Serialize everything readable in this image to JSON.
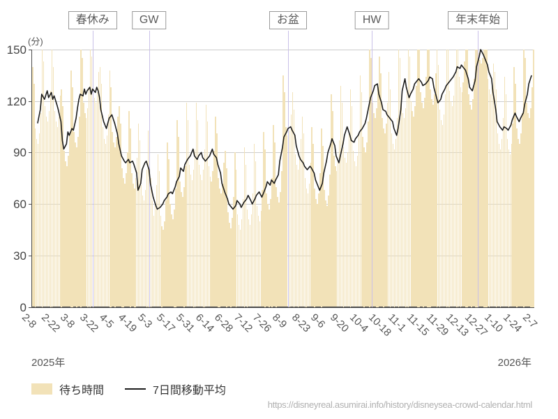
{
  "colors": {
    "bar": "#f2e2b8",
    "line": "#1c1c1c",
    "grid": "#cccccc",
    "axis": "#4a4a4a",
    "event_line": "#c9c0e8"
  },
  "era_labels": {
    "left": "2025年",
    "right": "2026年"
  },
  "legend": {
    "bar_label": "待ち時間",
    "line_label": "7日間移動平均"
  },
  "footer_url": "https://disneyreal.asumirai.info/history/disneysea-crowd-calendar.html",
  "chart_data": {
    "type": "bar+line",
    "title": "",
    "y_unit": "(分)",
    "ylim": [
      0,
      150
    ],
    "y_ticks": [
      0,
      30,
      60,
      90,
      120,
      150
    ],
    "x_tick_interval_days": 14,
    "x_tick_labels": [
      "2-8",
      "2-22",
      "3-8",
      "3-22",
      "4-5",
      "4-19",
      "5-3",
      "5-17",
      "5-31",
      "6-14",
      "6-28",
      "7-12",
      "7-26",
      "8-9",
      "8-23",
      "9-6",
      "9-20",
      "10-4",
      "10-18",
      "11-1",
      "11-15",
      "11-29",
      "12-13",
      "12-27",
      "1-10",
      "1-24",
      "2-7"
    ],
    "start_date": "2025-02-08",
    "end_date": "2026-02-07",
    "annotations": [
      {
        "label": "春休み",
        "day": 44
      },
      {
        "label": "GW",
        "day": 85
      },
      {
        "label": "お盆",
        "day": 186
      },
      {
        "label": "HW",
        "day": 247
      },
      {
        "label": "年末年始",
        "day": 324
      }
    ],
    "bars_series_name": "待ち時間",
    "bars": [
      140,
      130,
      104,
      98,
      95,
      101,
      113,
      150,
      143,
      117,
      111,
      108,
      114,
      126,
      150,
      140,
      114,
      108,
      105,
      111,
      123,
      127,
      117,
      91,
      85,
      82,
      88,
      100,
      138,
      128,
      102,
      96,
      93,
      99,
      111,
      150,
      145,
      119,
      113,
      110,
      116,
      128,
      150,
      146,
      128,
      122,
      119,
      125,
      137,
      140,
      130,
      105,
      98,
      95,
      100,
      112,
      138,
      128,
      102,
      96,
      93,
      99,
      111,
      117,
      107,
      81,
      75,
      72,
      78,
      90,
      114,
      104,
      78,
      72,
      69,
      75,
      87,
      107,
      97,
      71,
      65,
      62,
      68,
      80,
      103,
      95,
      75,
      62,
      53,
      59,
      71,
      89,
      79,
      53,
      47,
      45,
      50,
      62,
      96,
      86,
      60,
      54,
      51,
      57,
      69,
      109,
      99,
      73,
      67,
      64,
      70,
      82,
      119,
      109,
      83,
      77,
      74,
      80,
      92,
      119,
      109,
      83,
      77,
      74,
      80,
      92,
      118,
      108,
      82,
      76,
      73,
      79,
      91,
      111,
      101,
      75,
      69,
      66,
      72,
      84,
      91,
      81,
      55,
      49,
      46,
      52,
      64,
      90,
      80,
      54,
      48,
      45,
      51,
      63,
      93,
      83,
      57,
      51,
      48,
      54,
      66,
      95,
      85,
      59,
      53,
      50,
      56,
      68,
      102,
      92,
      66,
      60,
      57,
      63,
      75,
      106,
      96,
      70,
      64,
      61,
      67,
      79,
      135,
      125,
      105,
      100,
      97,
      103,
      112,
      125,
      115,
      89,
      83,
      80,
      86,
      98,
      111,
      101,
      75,
      69,
      66,
      72,
      84,
      105,
      95,
      69,
      63,
      60,
      66,
      78,
      104,
      94,
      68,
      62,
      59,
      65,
      77,
      124,
      114,
      88,
      82,
      79,
      85,
      97,
      129,
      119,
      93,
      87,
      84,
      90,
      102,
      127,
      117,
      91,
      85,
      82,
      88,
      100,
      135,
      125,
      99,
      93,
      90,
      96,
      108,
      150,
      145,
      119,
      113,
      110,
      116,
      128,
      146,
      136,
      110,
      104,
      101,
      107,
      119,
      137,
      127,
      101,
      95,
      92,
      98,
      110,
      150,
      145,
      119,
      113,
      110,
      116,
      128,
      150,
      146,
      120,
      114,
      111,
      117,
      129,
      150,
      150,
      125,
      119,
      116,
      122,
      134,
      150,
      150,
      127,
      121,
      118,
      124,
      136,
      150,
      141,
      115,
      109,
      106,
      112,
      124,
      150,
      150,
      126,
      120,
      117,
      123,
      135,
      150,
      150,
      134,
      128,
      125,
      131,
      143,
      150,
      150,
      124,
      118,
      115,
      121,
      133,
      150,
      150,
      148,
      144,
      142,
      145,
      150,
      150,
      150,
      133,
      127,
      124,
      130,
      142,
      137,
      127,
      101,
      95,
      92,
      98,
      110,
      134,
      124,
      98,
      92,
      89,
      95,
      107,
      140,
      130,
      104,
      98,
      95,
      101,
      113,
      150,
      145,
      119,
      113,
      110,
      116,
      128,
      150
    ],
    "ma_series_name": "7日間移動平均",
    "ma7": [
      [
        4,
        107
      ],
      [
        6,
        115
      ],
      [
        7,
        124
      ],
      [
        9,
        121
      ],
      [
        11,
        126
      ],
      [
        12,
        122
      ],
      [
        14,
        125
      ],
      [
        15,
        121
      ],
      [
        16,
        123
      ],
      [
        18,
        118
      ],
      [
        19,
        115
      ],
      [
        21,
        108
      ],
      [
        22,
        97
      ],
      [
        23,
        92
      ],
      [
        25,
        95
      ],
      [
        26,
        102
      ],
      [
        27,
        100
      ],
      [
        29,
        104
      ],
      [
        30,
        103
      ],
      [
        32,
        110
      ],
      [
        33,
        116
      ],
      [
        34,
        121
      ],
      [
        35,
        124
      ],
      [
        37,
        123
      ],
      [
        38,
        127
      ],
      [
        39,
        124
      ],
      [
        40,
        126
      ],
      [
        42,
        128
      ],
      [
        43,
        124
      ],
      [
        44,
        127
      ],
      [
        46,
        125
      ],
      [
        47,
        128
      ],
      [
        48,
        126
      ],
      [
        49,
        122
      ],
      [
        50,
        115
      ],
      [
        52,
        108
      ],
      [
        54,
        104
      ],
      [
        56,
        110
      ],
      [
        58,
        112
      ],
      [
        60,
        107
      ],
      [
        62,
        101
      ],
      [
        63,
        95
      ],
      [
        65,
        88
      ],
      [
        67,
        85
      ],
      [
        68,
        84
      ],
      [
        70,
        86
      ],
      [
        71,
        84
      ],
      [
        73,
        85
      ],
      [
        74,
        83
      ],
      [
        76,
        78
      ],
      [
        77,
        68
      ],
      [
        79,
        72
      ],
      [
        80,
        80
      ],
      [
        82,
        84
      ],
      [
        83,
        85
      ],
      [
        85,
        80
      ],
      [
        86,
        72
      ],
      [
        88,
        64
      ],
      [
        90,
        59
      ],
      [
        91,
        57
      ],
      [
        93,
        58
      ],
      [
        95,
        60
      ],
      [
        96,
        62
      ],
      [
        98,
        64
      ],
      [
        99,
        66
      ],
      [
        101,
        67
      ],
      [
        102,
        66
      ],
      [
        104,
        70
      ],
      [
        105,
        73
      ],
      [
        107,
        76
      ],
      [
        108,
        81
      ],
      [
        110,
        79
      ],
      [
        111,
        83
      ],
      [
        113,
        86
      ],
      [
        115,
        88
      ],
      [
        117,
        92
      ],
      [
        118,
        88
      ],
      [
        120,
        86
      ],
      [
        121,
        88
      ],
      [
        123,
        90
      ],
      [
        124,
        87
      ],
      [
        126,
        85
      ],
      [
        127,
        86
      ],
      [
        129,
        88
      ],
      [
        131,
        92
      ],
      [
        132,
        89
      ],
      [
        134,
        87
      ],
      [
        135,
        83
      ],
      [
        137,
        78
      ],
      [
        138,
        72
      ],
      [
        140,
        67
      ],
      [
        142,
        63
      ],
      [
        143,
        60
      ],
      [
        145,
        58
      ],
      [
        146,
        57
      ],
      [
        148,
        59
      ],
      [
        149,
        62
      ],
      [
        151,
        60
      ],
      [
        152,
        58
      ],
      [
        154,
        61
      ],
      [
        156,
        63
      ],
      [
        157,
        65
      ],
      [
        159,
        62
      ],
      [
        160,
        60
      ],
      [
        162,
        63
      ],
      [
        163,
        65
      ],
      [
        165,
        67
      ],
      [
        167,
        64
      ],
      [
        168,
        66
      ],
      [
        170,
        70
      ],
      [
        171,
        73
      ],
      [
        173,
        71
      ],
      [
        174,
        74
      ],
      [
        176,
        72
      ],
      [
        177,
        74
      ],
      [
        179,
        77
      ],
      [
        180,
        85
      ],
      [
        182,
        93
      ],
      [
        183,
        99
      ],
      [
        185,
        102
      ],
      [
        186,
        104
      ],
      [
        188,
        105
      ],
      [
        189,
        103
      ],
      [
        191,
        100
      ],
      [
        192,
        94
      ],
      [
        194,
        88
      ],
      [
        195,
        86
      ],
      [
        197,
        84
      ],
      [
        198,
        82
      ],
      [
        200,
        80
      ],
      [
        202,
        82
      ],
      [
        203,
        81
      ],
      [
        205,
        78
      ],
      [
        206,
        74
      ],
      [
        208,
        70
      ],
      [
        209,
        68
      ],
      [
        211,
        72
      ],
      [
        212,
        78
      ],
      [
        214,
        85
      ],
      [
        215,
        90
      ],
      [
        217,
        95
      ],
      [
        218,
        98
      ],
      [
        220,
        94
      ],
      [
        221,
        88
      ],
      [
        223,
        84
      ],
      [
        224,
        88
      ],
      [
        226,
        95
      ],
      [
        227,
        100
      ],
      [
        229,
        105
      ],
      [
        231,
        100
      ],
      [
        232,
        97
      ],
      [
        234,
        96
      ],
      [
        235,
        98
      ],
      [
        237,
        100
      ],
      [
        238,
        102
      ],
      [
        240,
        104
      ],
      [
        242,
        107
      ],
      [
        243,
        110
      ],
      [
        245,
        118
      ],
      [
        246,
        122
      ],
      [
        248,
        126
      ],
      [
        249,
        129
      ],
      [
        251,
        130
      ],
      [
        252,
        124
      ],
      [
        254,
        119
      ],
      [
        255,
        115
      ],
      [
        257,
        114
      ],
      [
        258,
        112
      ],
      [
        260,
        110
      ],
      [
        262,
        108
      ],
      [
        263,
        104
      ],
      [
        265,
        100
      ],
      [
        266,
        104
      ],
      [
        268,
        115
      ],
      [
        269,
        126
      ],
      [
        271,
        133
      ],
      [
        272,
        128
      ],
      [
        274,
        122
      ],
      [
        275,
        124
      ],
      [
        277,
        127
      ],
      [
        278,
        130
      ],
      [
        280,
        132
      ],
      [
        281,
        133
      ],
      [
        283,
        131
      ],
      [
        284,
        129
      ],
      [
        286,
        130
      ],
      [
        288,
        132
      ],
      [
        289,
        134
      ],
      [
        291,
        133
      ],
      [
        292,
        128
      ],
      [
        294,
        122
      ],
      [
        295,
        119
      ],
      [
        297,
        121
      ],
      [
        298,
        124
      ],
      [
        300,
        127
      ],
      [
        301,
        129
      ],
      [
        303,
        131
      ],
      [
        305,
        133
      ],
      [
        306,
        134
      ],
      [
        308,
        137
      ],
      [
        309,
        140
      ],
      [
        311,
        139
      ],
      [
        312,
        141
      ],
      [
        314,
        139
      ],
      [
        315,
        138
      ],
      [
        317,
        133
      ],
      [
        318,
        128
      ],
      [
        320,
        126
      ],
      [
        322,
        132
      ],
      [
        323,
        140
      ],
      [
        325,
        146
      ],
      [
        326,
        150
      ],
      [
        328,
        147
      ],
      [
        329,
        145
      ],
      [
        331,
        141
      ],
      [
        332,
        137
      ],
      [
        334,
        133
      ],
      [
        335,
        125
      ],
      [
        337,
        115
      ],
      [
        338,
        108
      ],
      [
        340,
        105
      ],
      [
        342,
        103
      ],
      [
        343,
        105
      ],
      [
        345,
        104
      ],
      [
        346,
        103
      ],
      [
        348,
        106
      ],
      [
        349,
        109
      ],
      [
        351,
        113
      ],
      [
        352,
        111
      ],
      [
        354,
        108
      ],
      [
        355,
        110
      ],
      [
        357,
        113
      ],
      [
        358,
        118
      ],
      [
        360,
        124
      ],
      [
        361,
        130
      ],
      [
        363,
        135
      ]
    ]
  }
}
